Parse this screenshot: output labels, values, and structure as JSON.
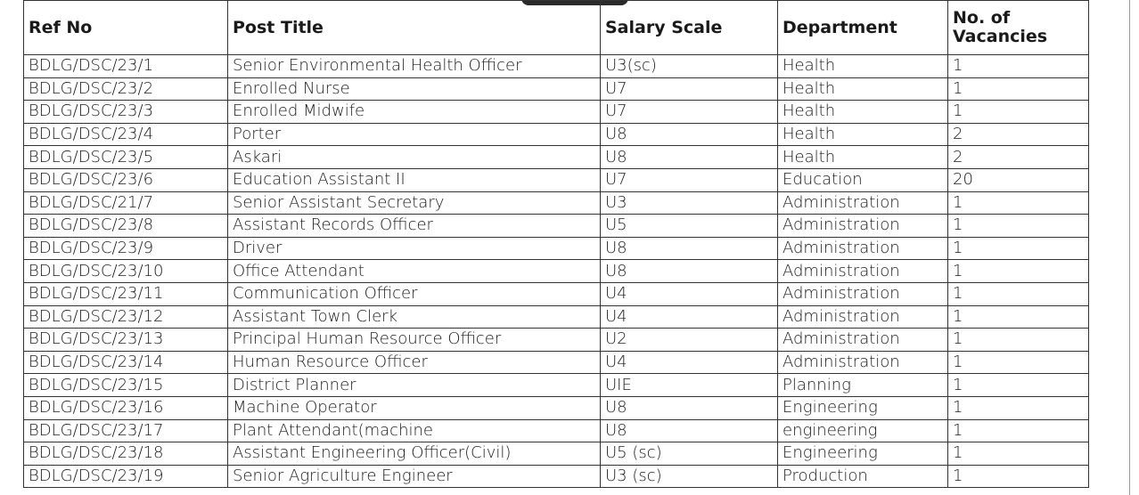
{
  "table": {
    "header": [
      "Ref No",
      "Post Title",
      "Salary Scale",
      "Department",
      "No. of Vacancies"
    ],
    "rows": [
      [
        "BDLG/DSC/23/1",
        "Senior Environmental Health Officer",
        "U3(sc)",
        "Health",
        1
      ],
      [
        "BDLG/DSC/23/2",
        "Enrolled Nurse",
        "U7",
        "Health",
        1
      ],
      [
        "BDLG/DSC/23/3",
        "Enrolled Midwife",
        "U7",
        "Health",
        1
      ],
      [
        "BDLG/DSC/23/4",
        "Porter",
        "U8",
        "Health",
        2
      ],
      [
        "BDLG/DSC/23/5",
        "Askari",
        "U8",
        "Health",
        2
      ],
      [
        "BDLG/DSC/23/6",
        "Education Assistant II",
        "U7",
        "Education",
        20
      ],
      [
        "BDLG/DSC/21/7",
        "Senior Assistant Secretary",
        "U3",
        "Administration",
        1
      ],
      [
        "BDLG/DSC/23/8",
        "Assistant Records Officer",
        "U5",
        "Administration",
        1
      ],
      [
        "BDLG/DSC/23/9",
        "Driver",
        "U8",
        "Administration",
        1
      ],
      [
        "BDLG/DSC/23/10",
        "Office Attendant",
        "U8",
        "Administration",
        1
      ],
      [
        "BDLG/DSC/23/11",
        "Communication Officer",
        "U4",
        "Administration",
        1
      ],
      [
        "BDLG/DSC/23/12",
        "Assistant Town Clerk",
        "U4",
        "Administration",
        1
      ],
      [
        "BDLG/DSC/23/13",
        "Principal Human Resource Officer",
        "U2",
        "Administration",
        1
      ],
      [
        "BDLG/DSC/23/14",
        "Human Resource Officer",
        "U4",
        "Administration",
        1
      ],
      [
        "BDLG/DSC/23/15",
        "District Planner",
        "UIE",
        "Planning",
        1
      ],
      [
        "BDLG/DSC/23/16",
        "Machine Operator",
        "U8",
        "Engineering",
        1
      ],
      [
        "BDLG/DSC/23/17",
        "Plant Attendant(machine",
        "U8",
        "engineering",
        1
      ],
      [
        "BDLG/DSC/23/18",
        "Assistant Engineering Officer(Civil)",
        "U5 (sc)",
        "Engineering",
        1
      ],
      [
        "BDLG/DSC/23/19",
        "Senior Agriculture Engineer",
        "U3 (sc)",
        "Production",
        1
      ]
    ]
  }
}
